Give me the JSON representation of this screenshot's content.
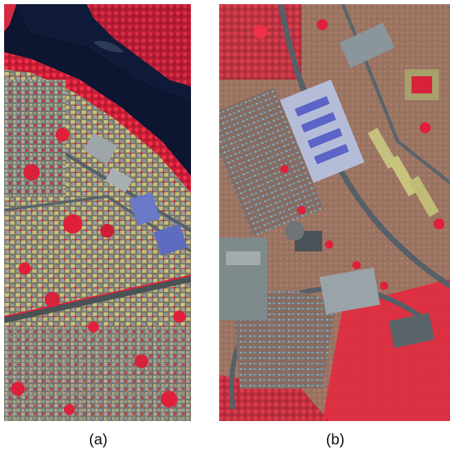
{
  "figure": {
    "panels": [
      {
        "caption": "(a)",
        "image": "false-color-infrared-aerial-urban-river"
      },
      {
        "caption": "(b)",
        "image": "false-color-infrared-aerial-campus-parking"
      }
    ]
  },
  "colors": {
    "vegetation": "#e0203a",
    "water": "#0d1530",
    "roof_grey": "#8a9398",
    "roof_yellow": "#c8c27a",
    "road": "#5c6468",
    "soil": "#a57a6a",
    "roof_blue": "#6a78c8"
  }
}
